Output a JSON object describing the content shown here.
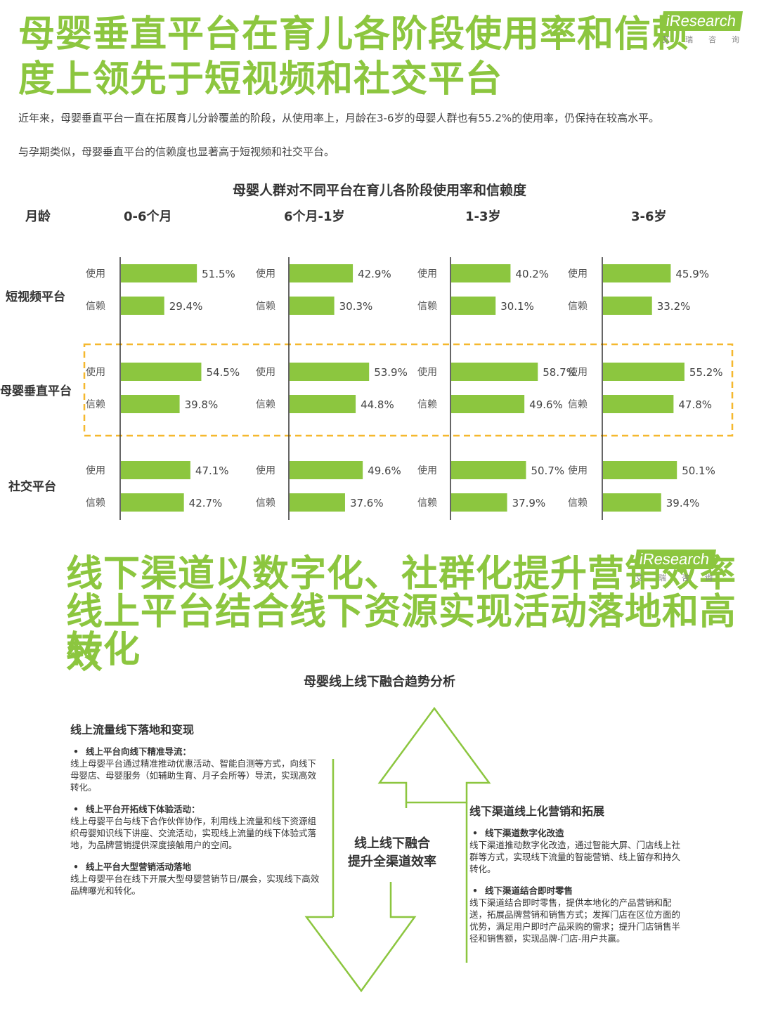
{
  "section1": {
    "title_line1": "母婴垂直平台在育儿各阶段使用率和信赖",
    "title_line2": "度上领先于短视频和社交平台",
    "desc_line1": "近年来，母婴垂直平台一直在拓展育儿分龄覆盖的阶段，从使用率上，月龄在3-6岁的母婴人群也有55.2%的使用率，仍保持在较高水平。",
    "desc_line2": "与孕期类似，母婴垂直平台的信赖度也显著高于短视频和社交平台。"
  },
  "logo": {
    "word": "iResearch",
    "sub": "艾瑞咨询"
  },
  "colors": {
    "accent": "#8cc63f",
    "highlight_border": "#f5b82e",
    "axis": "#333333"
  },
  "chart_data": {
    "type": "bar",
    "title": "母婴人群对不同平台在育儿各阶段使用率和信赖度",
    "row_header": "月龄",
    "stages": [
      "0-6个月",
      "6个月-1岁",
      "1-3岁",
      "3-6岁"
    ],
    "platforms": [
      "短视频平台",
      "母婴垂直平台",
      "社交平台"
    ],
    "metrics": [
      "使用",
      "信赖"
    ],
    "highlight": "母婴垂直平台",
    "series": [
      {
        "platform": "短视频平台",
        "metric": "使用",
        "values": [
          51.5,
          42.9,
          40.2,
          45.9
        ]
      },
      {
        "platform": "短视频平台",
        "metric": "信赖",
        "values": [
          29.4,
          30.3,
          30.1,
          33.2
        ]
      },
      {
        "platform": "母婴垂直平台",
        "metric": "使用",
        "values": [
          54.5,
          53.9,
          58.7,
          55.2
        ]
      },
      {
        "platform": "母婴垂直平台",
        "metric": "信赖",
        "values": [
          39.8,
          44.8,
          49.6,
          47.8
        ]
      },
      {
        "platform": "社交平台",
        "metric": "使用",
        "values": [
          47.1,
          49.6,
          50.7,
          50.1
        ]
      },
      {
        "platform": "社交平台",
        "metric": "信赖",
        "values": [
          42.7,
          37.6,
          37.9,
          39.4
        ]
      }
    ],
    "value_suffix": "%"
  },
  "section2": {
    "title_line1": "线下渠道以数字化、社群化提升营销效率",
    "title_line2": "线上平台结合线下资源实现活动落地和高效",
    "title_line3": "转化",
    "flow_title": "母婴线上线下融合趋势分析",
    "center_label_line1": "线上线下融合",
    "center_label_line2": "提升全渠道效率",
    "left_panel": {
      "heading": "线上流量线下落地和变现",
      "items": [
        {
          "title": "线上平台向线下精准导流：",
          "text": "线上母婴平台通过精准推动优惠活动、智能自测等方式，向线下母婴店、母婴服务（如辅助生育、月子会所等）导流，实现高效转化。"
        },
        {
          "title": "线上平台开拓线下体验活动：",
          "text": "线上母婴平台与线下合作伙伴协作，利用线上流量和线下资源组织母婴知识线下讲座、交流活动，实现线上流量的线下体验式落地，为品牌营销提供深度接触用户的空间。"
        },
        {
          "title": "线上平台大型营销活动落地",
          "text": "线上母婴平台在线下开展大型母婴营销节日/展会，实现线下高效品牌曝光和转化。"
        }
      ]
    },
    "right_panel": {
      "heading": "线下渠道线上化营销和拓展",
      "items": [
        {
          "title": "线下渠道数字化改造",
          "text": "线下渠道推动数字化改造，通过智能大屏、门店线上社群等方式，实现线下流量的智能营销、线上留存和持久转化。"
        },
        {
          "title": "线下渠道结合即时零售",
          "text": "线下渠道结合即时零售，提供本地化的产品营销和配送，拓展品牌营销和销售方式；发挥门店在区位方面的优势，满足用户即时产品采购的需求；提升门店销售半径和销售额，实现品牌-门店-用户共赢。"
        }
      ]
    }
  }
}
